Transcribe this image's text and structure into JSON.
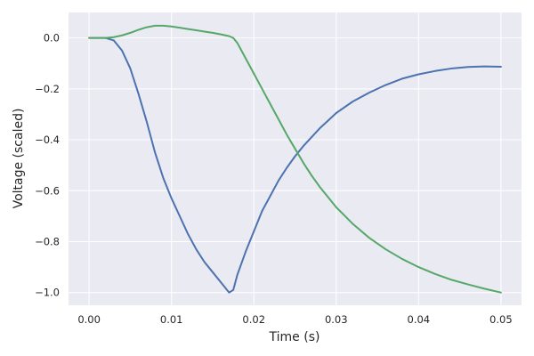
{
  "chart_data": {
    "type": "line",
    "title": "",
    "xlabel": "Time (s)",
    "ylabel": "Voltage (scaled)",
    "xlim": [
      -0.0025,
      0.0525
    ],
    "ylim": [
      -1.05,
      0.1
    ],
    "x_ticks": [
      0.0,
      0.01,
      0.02,
      0.03,
      0.04,
      0.05
    ],
    "x_tick_labels": [
      "0.00",
      "0.01",
      "0.02",
      "0.03",
      "0.04",
      "0.05"
    ],
    "y_ticks": [
      0.0,
      -0.2,
      -0.4,
      -0.6,
      -0.8,
      -1.0
    ],
    "y_tick_labels": [
      "0.0",
      "−0.2",
      "−0.4",
      "−0.6",
      "−0.8",
      "−1.0"
    ],
    "grid": true,
    "legend": "none",
    "colors": {
      "background": "#eaeaf2",
      "grid": "#ffffff",
      "text": "#262626"
    },
    "series": [
      {
        "color": "#4c72b0",
        "points": [
          [
            0.0,
            0.0
          ],
          [
            0.002,
            0.0
          ],
          [
            0.003,
            -0.01
          ],
          [
            0.004,
            -0.05
          ],
          [
            0.005,
            -0.12
          ],
          [
            0.006,
            -0.22
          ],
          [
            0.007,
            -0.33
          ],
          [
            0.008,
            -0.45
          ],
          [
            0.009,
            -0.55
          ],
          [
            0.01,
            -0.63
          ],
          [
            0.011,
            -0.7
          ],
          [
            0.012,
            -0.77
          ],
          [
            0.013,
            -0.83
          ],
          [
            0.014,
            -0.88
          ],
          [
            0.015,
            -0.92
          ],
          [
            0.016,
            -0.96
          ],
          [
            0.0165,
            -0.98
          ],
          [
            0.017,
            -1.0
          ],
          [
            0.0175,
            -0.99
          ],
          [
            0.018,
            -0.93
          ],
          [
            0.019,
            -0.84
          ],
          [
            0.02,
            -0.76
          ],
          [
            0.021,
            -0.68
          ],
          [
            0.022,
            -0.62
          ],
          [
            0.023,
            -0.56
          ],
          [
            0.024,
            -0.51
          ],
          [
            0.025,
            -0.465
          ],
          [
            0.026,
            -0.425
          ],
          [
            0.027,
            -0.39
          ],
          [
            0.028,
            -0.355
          ],
          [
            0.029,
            -0.325
          ],
          [
            0.03,
            -0.295
          ],
          [
            0.032,
            -0.25
          ],
          [
            0.034,
            -0.215
          ],
          [
            0.036,
            -0.185
          ],
          [
            0.038,
            -0.16
          ],
          [
            0.04,
            -0.143
          ],
          [
            0.042,
            -0.13
          ],
          [
            0.044,
            -0.12
          ],
          [
            0.046,
            -0.114
          ],
          [
            0.048,
            -0.112
          ],
          [
            0.05,
            -0.113
          ]
        ]
      },
      {
        "color": "#55a868",
        "points": [
          [
            0.0,
            0.0
          ],
          [
            0.002,
            0.0
          ],
          [
            0.003,
            0.003
          ],
          [
            0.004,
            0.01
          ],
          [
            0.005,
            0.02
          ],
          [
            0.006,
            0.032
          ],
          [
            0.007,
            0.042
          ],
          [
            0.008,
            0.048
          ],
          [
            0.009,
            0.048
          ],
          [
            0.01,
            0.045
          ],
          [
            0.011,
            0.04
          ],
          [
            0.012,
            0.035
          ],
          [
            0.013,
            0.03
          ],
          [
            0.014,
            0.025
          ],
          [
            0.015,
            0.02
          ],
          [
            0.016,
            0.014
          ],
          [
            0.017,
            0.007
          ],
          [
            0.0175,
            0.0
          ],
          [
            0.018,
            -0.02
          ],
          [
            0.019,
            -0.08
          ],
          [
            0.02,
            -0.14
          ],
          [
            0.021,
            -0.2
          ],
          [
            0.022,
            -0.26
          ],
          [
            0.023,
            -0.32
          ],
          [
            0.024,
            -0.38
          ],
          [
            0.025,
            -0.435
          ],
          [
            0.026,
            -0.49
          ],
          [
            0.027,
            -0.54
          ],
          [
            0.028,
            -0.585
          ],
          [
            0.029,
            -0.625
          ],
          [
            0.03,
            -0.665
          ],
          [
            0.032,
            -0.73
          ],
          [
            0.034,
            -0.785
          ],
          [
            0.036,
            -0.83
          ],
          [
            0.038,
            -0.868
          ],
          [
            0.04,
            -0.9
          ],
          [
            0.042,
            -0.927
          ],
          [
            0.044,
            -0.95
          ],
          [
            0.046,
            -0.968
          ],
          [
            0.048,
            -0.985
          ],
          [
            0.05,
            -1.0
          ]
        ]
      }
    ]
  }
}
